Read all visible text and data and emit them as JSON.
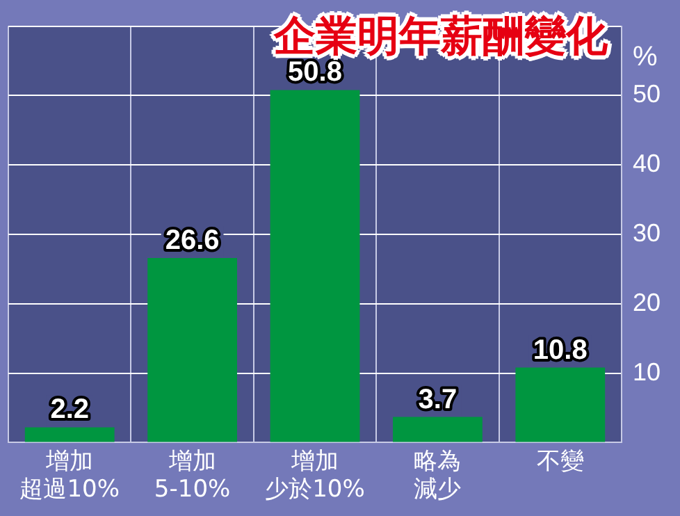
{
  "chart_data": {
    "type": "bar",
    "title": "企業明年薪酬變化",
    "ylabel": "%",
    "categories": [
      "增加超過10%",
      "增加5-10%",
      "增加少於10%",
      "略為減少",
      "不變"
    ],
    "values": [
      2.2,
      26.6,
      50.8,
      3.7,
      10.8
    ],
    "color": "#009640",
    "ylim": [
      0,
      60
    ],
    "yticks": [
      {
        "value": 0,
        "label": null
      },
      10,
      20,
      30,
      40,
      50,
      {
        "value": 60,
        "label": null
      }
    ],
    "grid": true,
    "legend": false,
    "data_labels": true
  }
}
